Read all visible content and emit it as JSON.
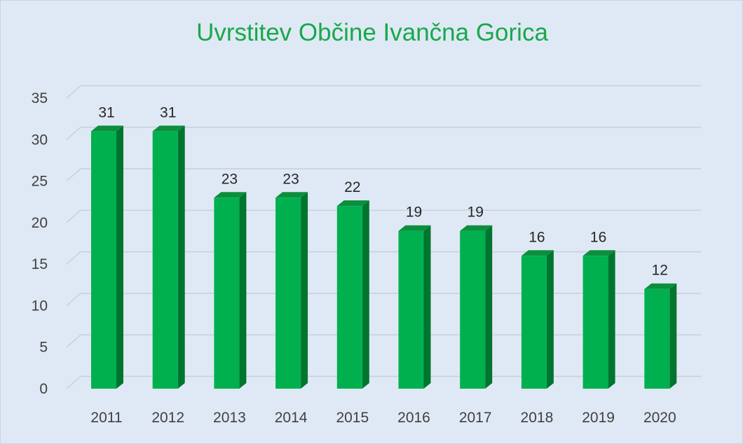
{
  "chart_data": {
    "type": "bar",
    "title": "Uvrstitev Občine Ivančna Gorica",
    "categories": [
      "2011",
      "2012",
      "2013",
      "2014",
      "2015",
      "2016",
      "2017",
      "2018",
      "2019",
      "2020"
    ],
    "values": [
      31,
      31,
      23,
      23,
      22,
      19,
      19,
      16,
      16,
      12
    ],
    "ylim": [
      0,
      35
    ],
    "yticks": [
      "0",
      "5",
      "10",
      "15",
      "20",
      "25",
      "30",
      "35"
    ],
    "grid": true,
    "legend": "none",
    "colors": {
      "bar_front": "#00b04f",
      "bar_side": "#00752f",
      "bar_top": "#0c8f3d",
      "grid": "#c8d1dc",
      "background": "#dfe9f5",
      "title": "#19a84a"
    }
  }
}
